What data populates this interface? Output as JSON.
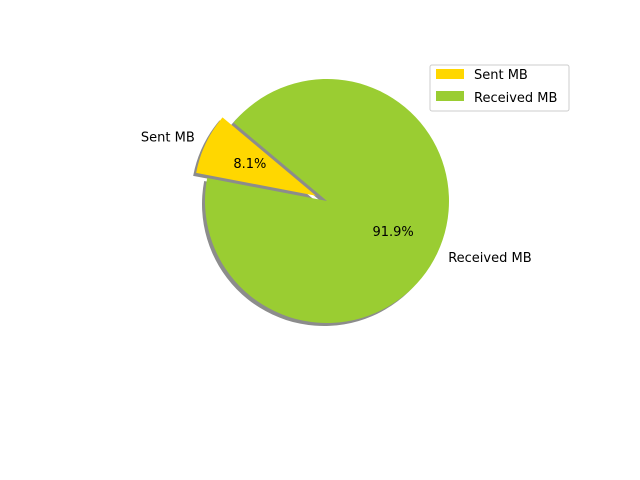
{
  "chart_data": {
    "type": "pie",
    "title": "",
    "slices": [
      {
        "label": "Sent MB",
        "percent": 8.1,
        "percent_text": "8.1%",
        "color": "#FFD700",
        "exploded": true
      },
      {
        "label": "Received MB",
        "percent": 91.9,
        "percent_text": "91.9%",
        "color": "#9ACD32",
        "exploded": false
      }
    ],
    "start_angle_deg": 140,
    "shadow": true,
    "legend": {
      "placement": "top-right",
      "entries": [
        "Sent MB",
        "Received MB"
      ]
    }
  }
}
